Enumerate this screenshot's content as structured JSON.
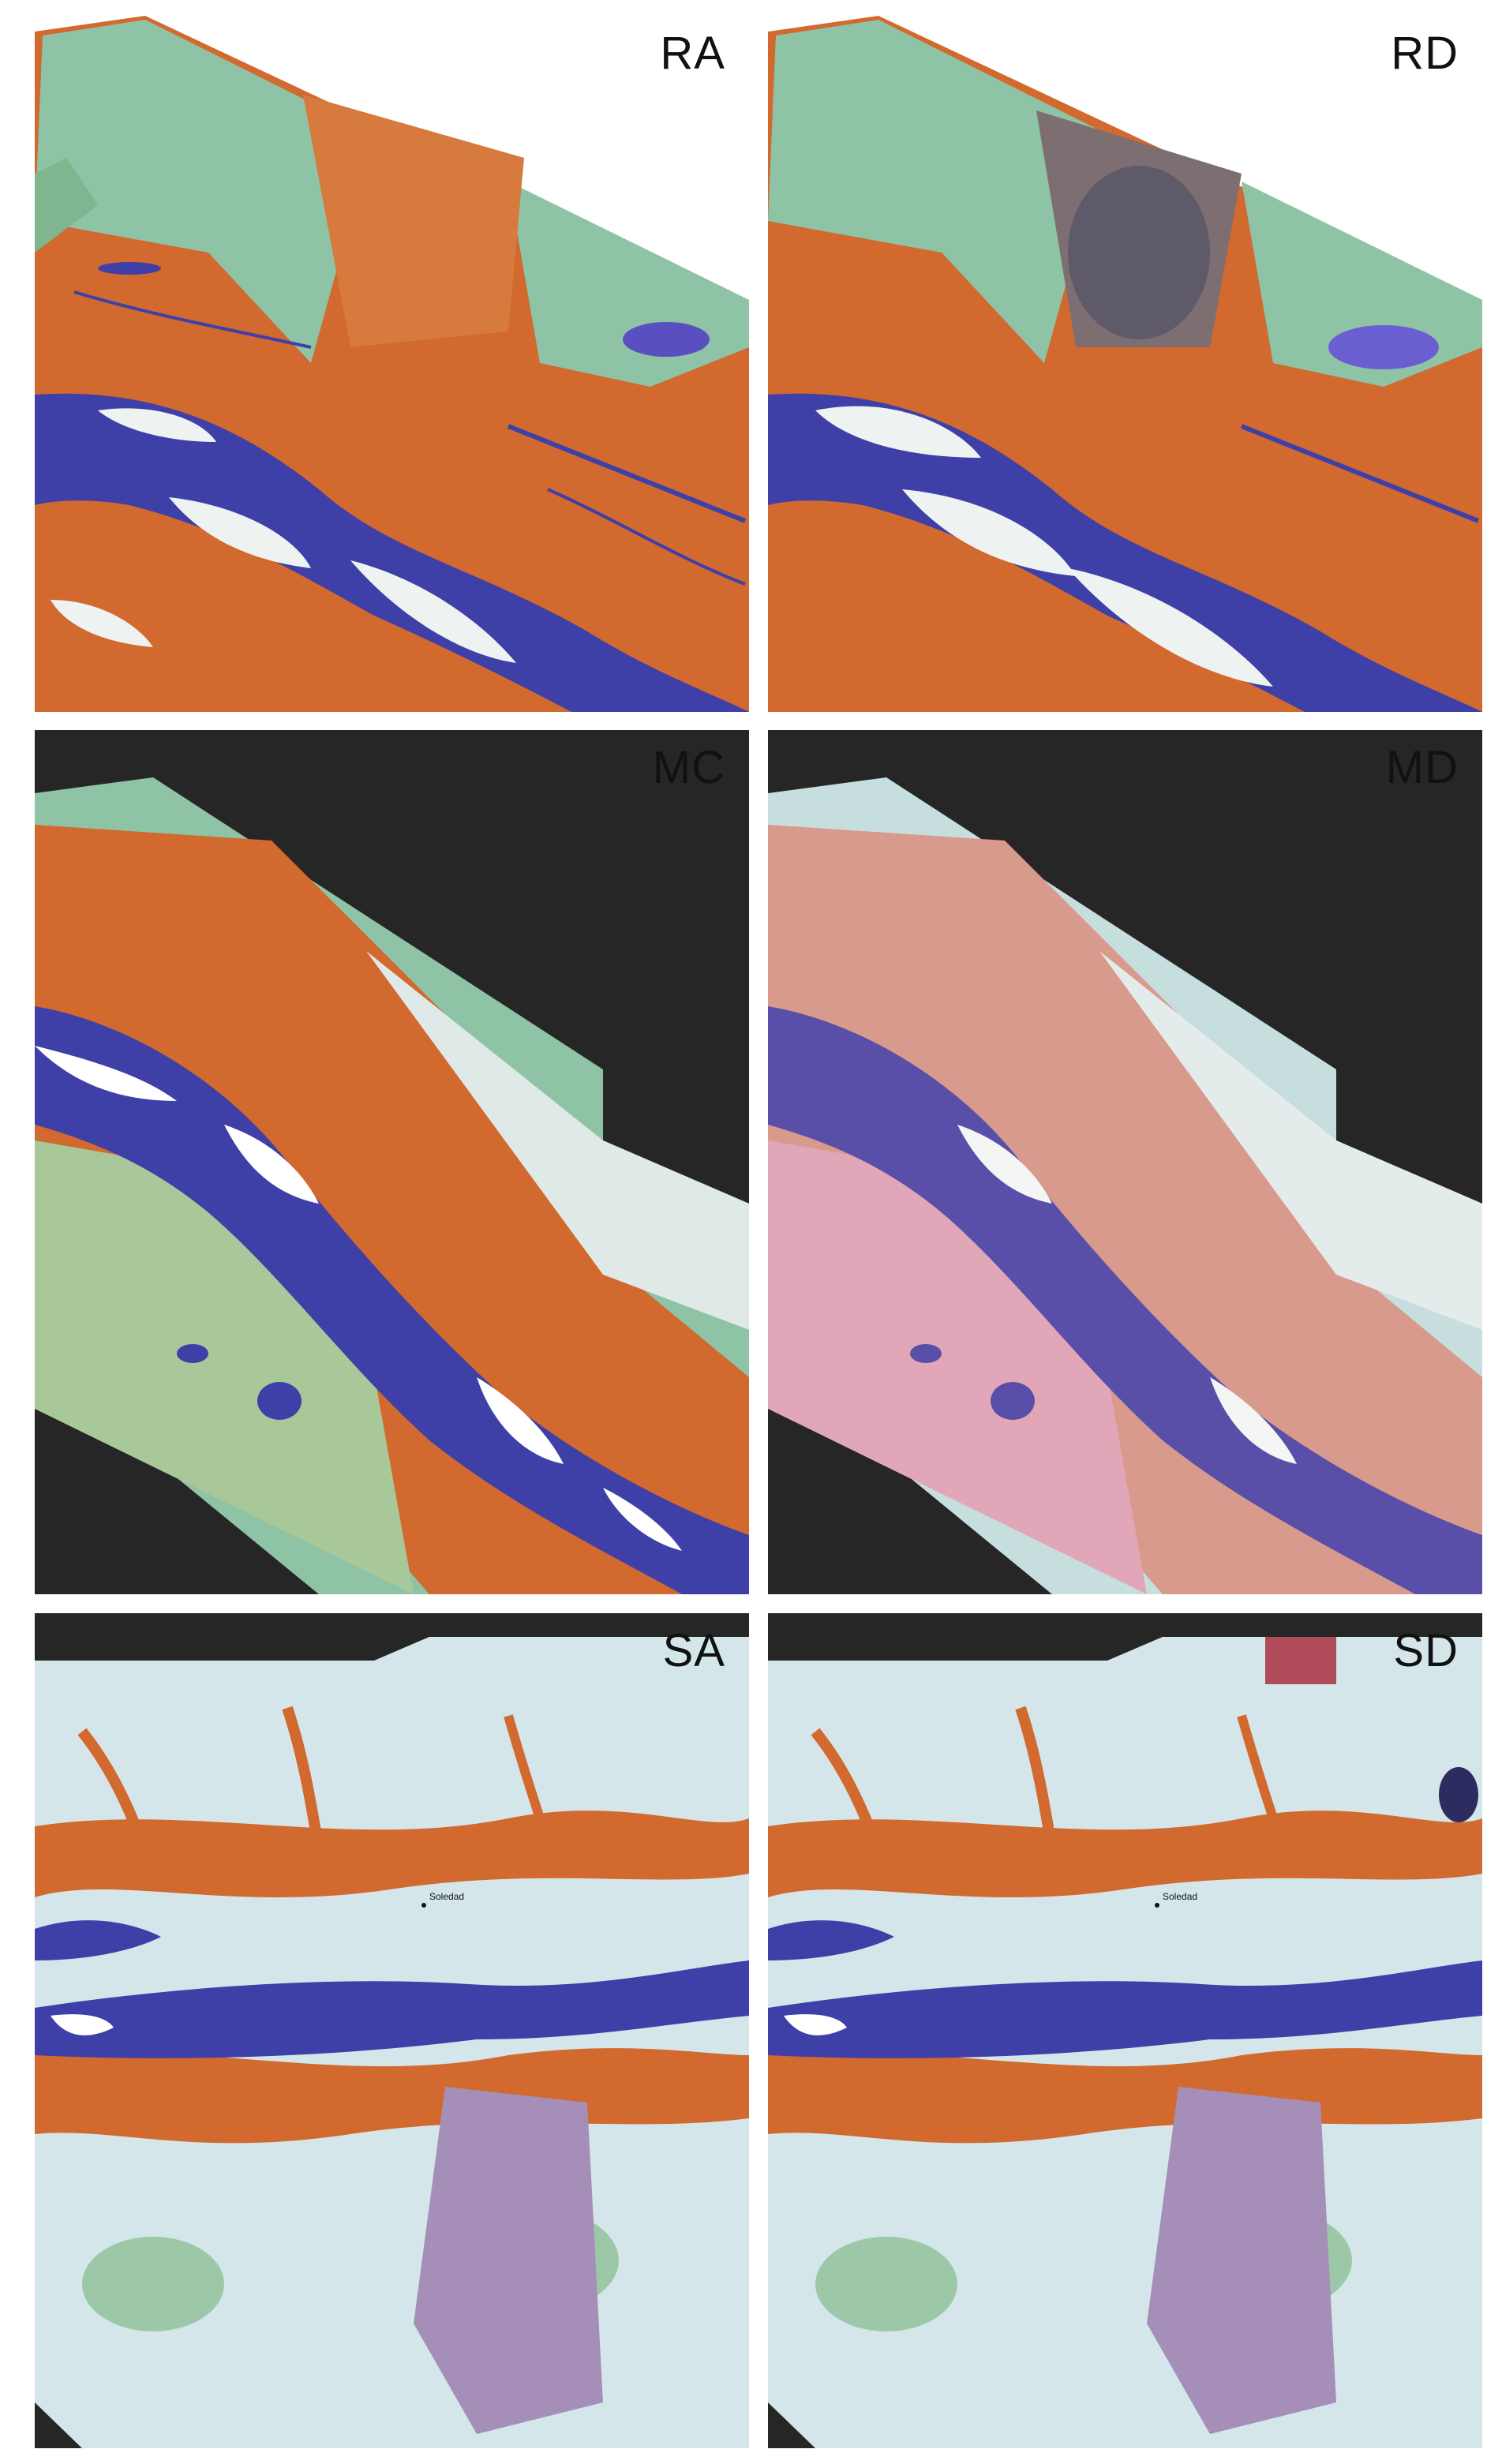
{
  "figure": {
    "panels": [
      {
        "id": "RA",
        "label": "RA",
        "row": 1,
        "col": 1,
        "background": "white"
      },
      {
        "id": "RD",
        "label": "RD",
        "row": 1,
        "col": 2,
        "background": "white"
      },
      {
        "id": "MC",
        "label": "MC",
        "row": 2,
        "col": 1,
        "background": "black"
      },
      {
        "id": "MD",
        "label": "MD",
        "row": 2,
        "col": 2,
        "background": "black"
      },
      {
        "id": "SA",
        "label": "SA",
        "row": 3,
        "col": 1,
        "background": "black",
        "town": "Soledad"
      },
      {
        "id": "SD",
        "label": "SD",
        "row": 3,
        "col": 2,
        "background": "black",
        "town": "Soledad"
      }
    ],
    "colors": {
      "water": "#3f3fa8",
      "floodplain": "#d2692f",
      "forest": "#8fc3a6",
      "sand": "#eef3f2",
      "nodata": "#262626",
      "urban": "#a58fb8"
    }
  }
}
